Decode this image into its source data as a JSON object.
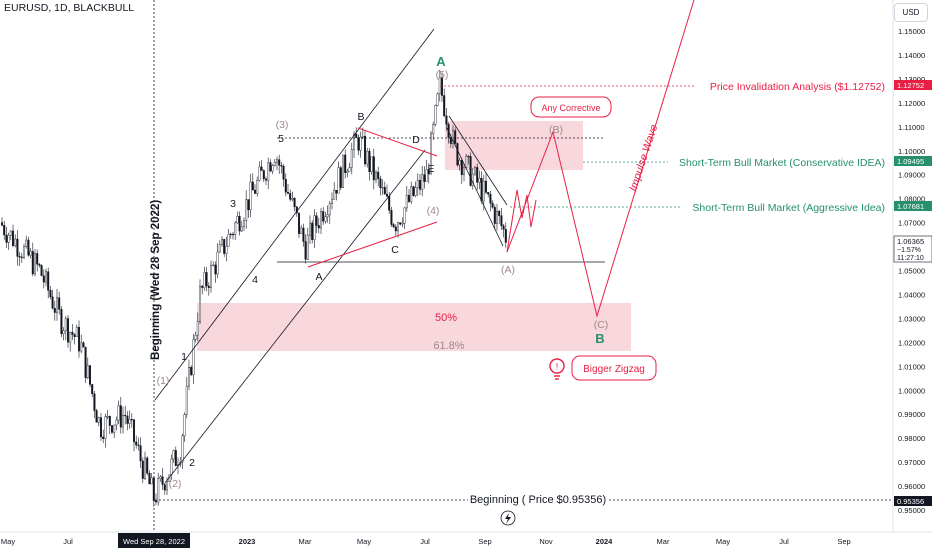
{
  "header": {
    "symbol": "EURUSD, 1D, BLACKBULL",
    "currency_button": "USD"
  },
  "chart_data": {
    "type": "candlestick",
    "x_ticks": [
      "May",
      "Jul",
      "Wed Sep 28, 2022",
      "2023",
      "Mar",
      "May",
      "Jul",
      "Sep",
      "Nov",
      "2024",
      "Mar",
      "May",
      "Jul",
      "Sep"
    ],
    "y_ticks": [
      1.15,
      1.14,
      1.13,
      1.12,
      1.11,
      1.1,
      1.09,
      1.08,
      1.07,
      1.06,
      1.05,
      1.04,
      1.03,
      1.02,
      1.01,
      1.0,
      0.99,
      0.98,
      0.97,
      0.96,
      0.95
    ],
    "ylim": [
      0.948,
      1.155
    ],
    "price_labels": [
      {
        "text": "1.12752",
        "color": "#e91e44"
      },
      {
        "text": "1.09495",
        "color": "#26906e"
      },
      {
        "text": "1.07681",
        "color": "#26906e"
      },
      {
        "text": "1.06365",
        "sub1": "−1.57%",
        "sub2": "11:27:10",
        "color": "#131722"
      },
      {
        "text": "0.95356",
        "color": "#131722"
      }
    ],
    "candle_path": [
      [
        2022.0,
        1.07
      ],
      [
        2022.15,
        1.06
      ],
      [
        2022.33,
        1.05
      ],
      [
        2022.42,
        1.035
      ],
      [
        2022.5,
        1.02
      ],
      [
        2022.58,
        1.0
      ],
      [
        2022.66,
        0.985
      ],
      [
        2022.74,
        0.955
      ],
      [
        2022.85,
        0.975
      ],
      [
        2022.94,
        1.04
      ],
      [
        2023.0,
        1.065
      ],
      [
        2023.05,
        1.085
      ],
      [
        2023.15,
        1.055
      ],
      [
        2023.25,
        1.06
      ],
      [
        2023.3,
        1.075
      ],
      [
        2023.38,
        1.105
      ],
      [
        2023.45,
        1.085
      ],
      [
        2023.52,
        1.09
      ],
      [
        2023.55,
        1.125
      ],
      [
        2023.65,
        1.095
      ],
      [
        2023.7,
        1.08
      ],
      [
        2023.73,
        1.065
      ]
    ],
    "wave_labels": [
      {
        "text": "(1)",
        "x": 2022.64,
        "y": 1.005,
        "color": "#a0888a"
      },
      {
        "text": "(2)",
        "x": 2022.74,
        "y": 0.955,
        "color": "#a0888a"
      },
      {
        "text": "(3)",
        "x": 2023.09,
        "y": 1.11,
        "color": "#a0888a"
      },
      {
        "text": "(4)",
        "x": 2023.47,
        "y": 1.072,
        "color": "#a0888a"
      },
      {
        "text": "(5)",
        "x": 2023.55,
        "y": 1.137,
        "color": "#a0888a"
      },
      {
        "text": "1",
        "x": 2022.72,
        "y": 1.013,
        "color": "#131722"
      },
      {
        "text": "2",
        "x": 2022.84,
        "y": 0.969,
        "color": "#131722"
      },
      {
        "text": "3",
        "x": 2022.99,
        "y": 1.078,
        "color": "#131722"
      },
      {
        "text": "4",
        "x": 2023.04,
        "y": 1.046,
        "color": "#131722"
      },
      {
        "text": "5",
        "x": 2023.09,
        "y": 1.1,
        "color": "#131722"
      },
      {
        "text": "A",
        "x": 2023.15,
        "y": 1.046,
        "color": "#131722"
      },
      {
        "text": "B",
        "x": 2023.24,
        "y": 1.107,
        "color": "#131722"
      },
      {
        "text": "C",
        "x": 2023.3,
        "y": 1.055,
        "color": "#131722"
      },
      {
        "text": "D",
        "x": 2023.37,
        "y": 1.1,
        "color": "#131722"
      },
      {
        "text": "E",
        "x": 2023.47,
        "y": 1.082,
        "color": "#131722"
      },
      {
        "text": "A",
        "x": 2023.55,
        "y": 1.145,
        "color": "#26906e"
      },
      {
        "text": "(A)",
        "x": 2023.75,
        "y": 1.048,
        "color": "#a0888a"
      },
      {
        "text": "(B)",
        "x": 2023.85,
        "y": 1.107,
        "color": "#a0888a"
      },
      {
        "text": "(C)",
        "x": 2023.95,
        "y": 1.027,
        "color": "#a0888a"
      },
      {
        "text": "B",
        "x": 2023.95,
        "y": 1.018,
        "color": "#26906e"
      }
    ],
    "annotations": {
      "invalidation": "Price Invalidation Analysis ($1.12752)",
      "conservative": "Short-Term Bull Market (Conservative IDEA)",
      "aggressive": "Short-Term Bull Market (Aggressive Idea)",
      "fib_50": "50%",
      "fib_618": "61.8%",
      "beginning": "Beginning ( Price $0.95356)",
      "beginning_vertical": "Beginning (Wed 28 Sep 2022)",
      "impulse": "Impulse Wave",
      "any_corrective": "Any Corrective",
      "bigger_zigzag": "Bigger Zigzag"
    },
    "colors": {
      "red": "#e91e44",
      "green": "#26906e",
      "zone": "#f7d3d9",
      "candle": "#131722"
    }
  }
}
